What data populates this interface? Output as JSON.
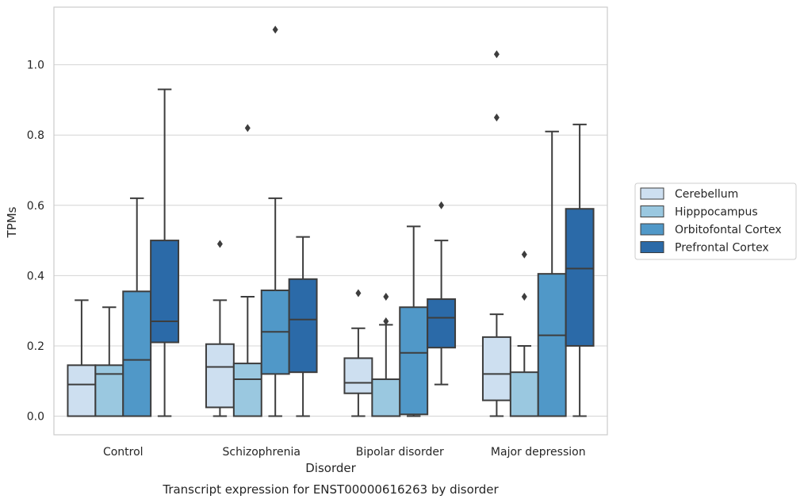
{
  "chart_data": {
    "type": "boxplot",
    "caption": "Transcript expression for ENST00000616263 by disorder",
    "xlabel": "Disorder",
    "ylabel": "TPMs",
    "ylim": [
      -0.053,
      1.164
    ],
    "yticks": [
      0.0,
      0.2,
      0.4,
      0.6,
      0.8,
      1.0
    ],
    "ytick_labels": [
      "0.0",
      "0.2",
      "0.4",
      "0.6",
      "0.8",
      "1.0"
    ],
    "grid": "horizontal",
    "legend_position": "right",
    "categories": [
      "Control",
      "Schizophrenia",
      "Bipolar disorder",
      "Major depression"
    ],
    "series": [
      {
        "name": "Cerebellum",
        "color": "#cddff0",
        "boxes": [
          {
            "min": 0.0,
            "q1": 0.0,
            "median": 0.09,
            "q3": 0.145,
            "max": 0.33,
            "outliers": []
          },
          {
            "min": 0.0,
            "q1": 0.025,
            "median": 0.14,
            "q3": 0.205,
            "max": 0.33,
            "outliers": [
              0.49
            ]
          },
          {
            "min": 0.0,
            "q1": 0.065,
            "median": 0.095,
            "q3": 0.165,
            "max": 0.25,
            "outliers": [
              0.35
            ]
          },
          {
            "min": 0.0,
            "q1": 0.045,
            "median": 0.12,
            "q3": 0.225,
            "max": 0.29,
            "outliers": [
              0.85,
              1.03
            ]
          }
        ]
      },
      {
        "name": "Hipppocampus",
        "color": "#9ac8e0",
        "boxes": [
          {
            "min": 0.0,
            "q1": 0.0,
            "median": 0.12,
            "q3": 0.145,
            "max": 0.31,
            "outliers": []
          },
          {
            "min": 0.0,
            "q1": 0.0,
            "median": 0.105,
            "q3": 0.15,
            "max": 0.34,
            "outliers": [
              0.82
            ]
          },
          {
            "min": 0.0,
            "q1": 0.0,
            "median": 0.0,
            "q3": 0.105,
            "max": 0.26,
            "outliers": [
              0.27,
              0.34
            ]
          },
          {
            "min": 0.0,
            "q1": 0.0,
            "median": 0.0,
            "q3": 0.125,
            "max": 0.2,
            "outliers": [
              0.34,
              0.46
            ]
          }
        ]
      },
      {
        "name": "Orbitofontal Cortex",
        "color": "#5098c8",
        "boxes": [
          {
            "min": 0.0,
            "q1": 0.0,
            "median": 0.16,
            "q3": 0.355,
            "max": 0.62,
            "outliers": []
          },
          {
            "min": 0.0,
            "q1": 0.12,
            "median": 0.24,
            "q3": 0.358,
            "max": 0.62,
            "outliers": [
              1.1
            ]
          },
          {
            "min": 0.0,
            "q1": 0.005,
            "median": 0.18,
            "q3": 0.31,
            "max": 0.54,
            "outliers": []
          },
          {
            "min": 0.0,
            "q1": 0.0,
            "median": 0.23,
            "q3": 0.405,
            "max": 0.81,
            "outliers": []
          }
        ]
      },
      {
        "name": "Prefrontal Cortex",
        "color": "#2b6aa8",
        "boxes": [
          {
            "min": 0.0,
            "q1": 0.21,
            "median": 0.27,
            "q3": 0.5,
            "max": 0.93,
            "outliers": []
          },
          {
            "min": 0.0,
            "q1": 0.125,
            "median": 0.275,
            "q3": 0.39,
            "max": 0.51,
            "outliers": []
          },
          {
            "min": 0.09,
            "q1": 0.195,
            "median": 0.28,
            "q3": 0.333,
            "max": 0.5,
            "outliers": [
              0.6
            ]
          },
          {
            "min": 0.0,
            "q1": 0.2,
            "median": 0.42,
            "q3": 0.59,
            "max": 0.83,
            "outliers": []
          }
        ]
      }
    ]
  }
}
